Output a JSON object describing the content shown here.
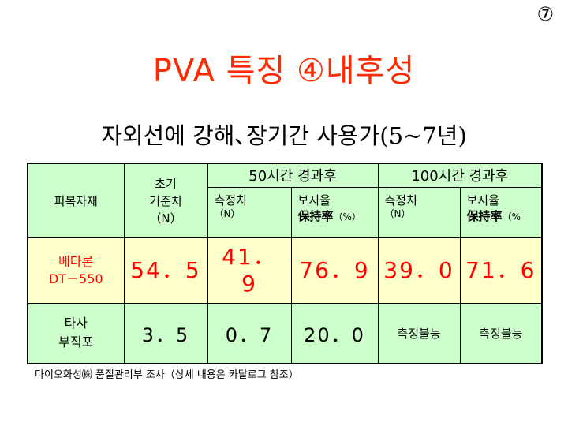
{
  "page_number": "⑦",
  "title": "PVA 특징 ④내후성",
  "subtitle": {
    "text": "자외선에 강해､장기간 사용가",
    "years": "(5~7년)"
  },
  "table": {
    "col_material": "피복자재",
    "col_initial": {
      "line1": "초기",
      "line2": "기준치",
      "line3": "（N）"
    },
    "group_50": "50시간 경과후",
    "group_100": "100시간 경과후",
    "sub_measure": {
      "label": "측정치",
      "unit": "（N）"
    },
    "sub_retention": {
      "label": "보지율",
      "label2": "保持率",
      "unit": "（%）"
    },
    "sub_retention_100_unit": "（%",
    "rows": [
      {
        "name_line1": "베타론",
        "name_line2": "DT－550",
        "initial": "54．5",
        "m50": "41．9",
        "r50": "76．9",
        "m100": "39．0",
        "r100": "71．6"
      },
      {
        "name_line1": "타사",
        "name_line2": "부직포",
        "initial": "3．5",
        "m50": "0．7",
        "r50": "20．0",
        "m100": "측정불능",
        "r100": "측정불능"
      }
    ]
  },
  "footnote": "다이오화성㈱ 품질관리부 조사（상세 내용은 카달로그 참조）",
  "colors": {
    "title": "#ff2a00",
    "highlight": "#ff0000",
    "header_bg": "#ccffcc",
    "beta_row_bg": "#ffffcc",
    "other_row_bg": "#ccffcc"
  }
}
